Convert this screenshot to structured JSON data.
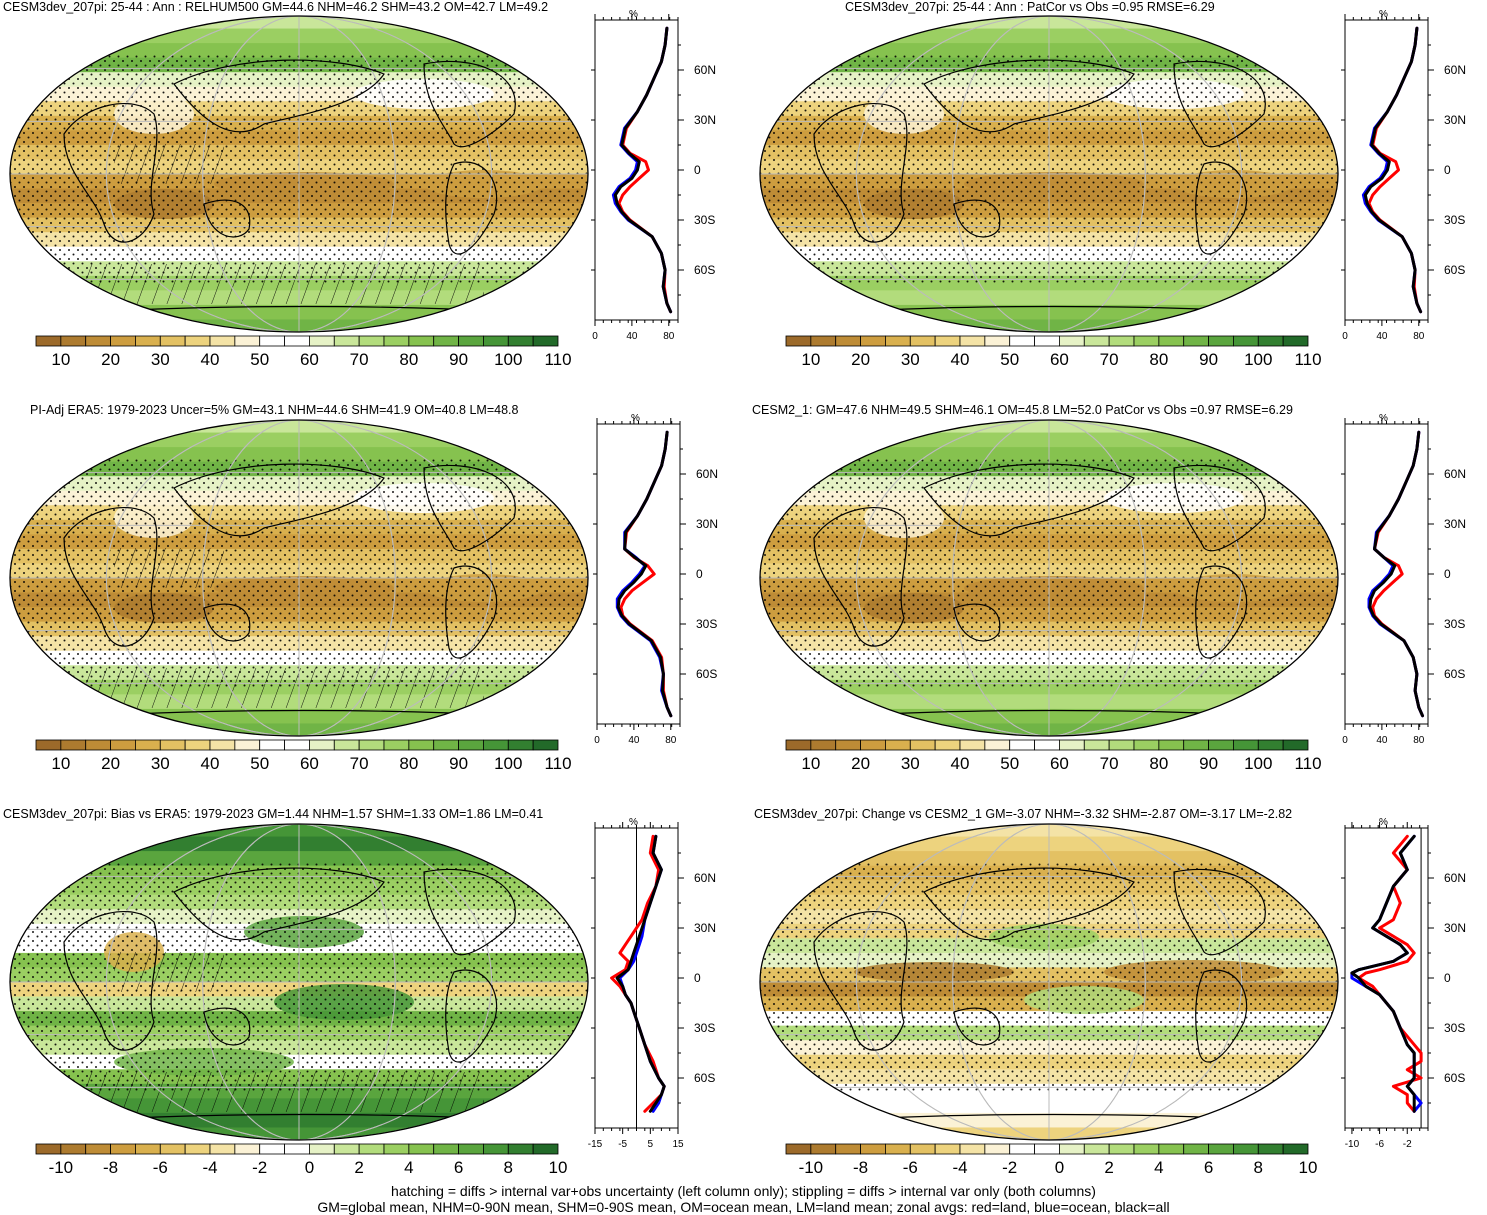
{
  "colors": {
    "absolute_scale": [
      "#9c6a2a",
      "#ad7b2f",
      "#be8c36",
      "#cd9d3f",
      "#d9b04e",
      "#e3c163",
      "#edd37e",
      "#f4e3a6",
      "#fbf2d6",
      "#ffffff",
      "#ffffff",
      "#e6f2c6",
      "#c9e69a",
      "#b2dc7c",
      "#9bcf62",
      "#86c24f",
      "#70b446",
      "#5aa53e",
      "#459537",
      "#327f30",
      "#226a29"
    ],
    "diff_scale": [
      "#9c6a2a",
      "#ad7b2f",
      "#be8c36",
      "#cd9d3f",
      "#d9b04e",
      "#e3c163",
      "#edd37e",
      "#f4e3a6",
      "#fbf2d6",
      "#ffffff",
      "#ffffff",
      "#e6f2c6",
      "#c9e69a",
      "#b2dc7c",
      "#9bcf62",
      "#86c24f",
      "#70b446",
      "#5aa53e",
      "#459537",
      "#327f30",
      "#226a29"
    ],
    "land_line": "#ff0000",
    "ocean_line": "#0000ff",
    "all_line": "#000000",
    "missing": "#d3d3d3"
  },
  "chart_data": [
    {
      "type": "heatmap",
      "title": "CESM3dev_207pi: 25-44 : Ann : RELHUM500 GM=44.6 NHM=46.2 SHM=43.2 OM=42.7 LM=49.2",
      "colorbar_labels": [
        "10",
        "20",
        "30",
        "40",
        "50",
        "60",
        "70",
        "80",
        "90",
        "100",
        "110"
      ],
      "zonal": {
        "top_label": "%",
        "x_ticks": [
          "0",
          "40",
          "80"
        ],
        "xlim": [
          0,
          90
        ],
        "y_ticks": [
          "60N",
          "30N",
          "0",
          "30S",
          "60S"
        ],
        "ylim": [
          -90,
          90
        ],
        "lat": [
          85,
          75,
          65,
          55,
          45,
          35,
          25,
          15,
          10,
          5,
          0,
          -5,
          -10,
          -15,
          -20,
          -25,
          -30,
          -40,
          -50,
          -60,
          -70,
          -80,
          -85
        ],
        "land": [
          78,
          76,
          72,
          64,
          56,
          46,
          34,
          30,
          38,
          55,
          58,
          48,
          38,
          30,
          26,
          30,
          38,
          62,
          72,
          76,
          75,
          78,
          82
        ],
        "ocean": [
          78,
          76,
          72,
          64,
          56,
          46,
          32,
          28,
          36,
          46,
          44,
          38,
          26,
          20,
          22,
          28,
          36,
          62,
          72,
          76,
          74,
          78,
          82
        ],
        "all": [
          78,
          76,
          72,
          64,
          56,
          46,
          33,
          29,
          37,
          48,
          46,
          40,
          28,
          22,
          24,
          29,
          37,
          62,
          72,
          76,
          74,
          78,
          82
        ]
      }
    },
    {
      "type": "heatmap",
      "title": "CESM3dev_207pi: 25-44 : Ann : PatCor vs Obs =0.95 RMSE=6.29",
      "colorbar_labels": [
        "10",
        "20",
        "30",
        "40",
        "50",
        "60",
        "70",
        "80",
        "90",
        "100",
        "110"
      ],
      "zonal": {
        "top_label": "%",
        "x_ticks": [
          "0",
          "40",
          "80"
        ],
        "xlim": [
          0,
          90
        ],
        "y_ticks": [
          "60N",
          "30N",
          "0",
          "30S",
          "60S"
        ],
        "ylim": [
          -90,
          90
        ],
        "lat": [
          85,
          75,
          65,
          55,
          45,
          35,
          25,
          15,
          10,
          5,
          0,
          -5,
          -10,
          -15,
          -20,
          -25,
          -30,
          -40,
          -50,
          -60,
          -70,
          -80,
          -85
        ],
        "land": [
          78,
          76,
          72,
          64,
          56,
          46,
          34,
          30,
          38,
          55,
          58,
          48,
          38,
          30,
          26,
          30,
          38,
          62,
          72,
          76,
          75,
          78,
          82
        ],
        "ocean": [
          78,
          76,
          72,
          64,
          56,
          46,
          32,
          28,
          36,
          46,
          44,
          38,
          26,
          20,
          22,
          28,
          36,
          62,
          72,
          76,
          74,
          78,
          82
        ],
        "all": [
          78,
          76,
          72,
          64,
          56,
          46,
          33,
          29,
          37,
          48,
          46,
          40,
          28,
          22,
          24,
          29,
          37,
          62,
          72,
          76,
          74,
          78,
          82
        ]
      }
    },
    {
      "type": "heatmap",
      "title": "PI-Adj ERA5: 1979-2023 Uncer=5% GM=43.1 NHM=44.6 SHM=41.9 OM=40.8 LM=48.8",
      "colorbar_labels": [
        "10",
        "20",
        "30",
        "40",
        "50",
        "60",
        "70",
        "80",
        "90",
        "100",
        "110"
      ],
      "zonal": {
        "top_label": "%",
        "x_ticks": [
          "0",
          "40",
          "80"
        ],
        "xlim": [
          0,
          90
        ],
        "y_ticks": [
          "60N",
          "30N",
          "0",
          "30S",
          "60S"
        ],
        "ylim": [
          -90,
          90
        ],
        "lat": [
          85,
          75,
          65,
          55,
          45,
          35,
          25,
          15,
          10,
          5,
          0,
          -5,
          -10,
          -15,
          -20,
          -25,
          -30,
          -40,
          -50,
          -60,
          -70,
          -80,
          -85
        ],
        "land": [
          76,
          74,
          70,
          62,
          54,
          44,
          32,
          30,
          40,
          55,
          62,
          50,
          38,
          30,
          26,
          28,
          36,
          60,
          70,
          72,
          72,
          76,
          80
        ],
        "ocean": [
          76,
          74,
          70,
          62,
          54,
          44,
          30,
          30,
          42,
          52,
          46,
          38,
          28,
          22,
          22,
          26,
          34,
          58,
          68,
          72,
          70,
          76,
          80
        ],
        "all": [
          76,
          74,
          70,
          62,
          54,
          44,
          31,
          30,
          41,
          53,
          48,
          40,
          30,
          24,
          23,
          27,
          35,
          59,
          69,
          72,
          71,
          76,
          80
        ]
      }
    },
    {
      "type": "heatmap",
      "title": "CESM2_1: GM=47.6 NHM=49.5 SHM=46.1 OM=45.8 LM=52.0 PatCor vs Obs =0.97 RMSE=6.29",
      "colorbar_labels": [
        "10",
        "20",
        "30",
        "40",
        "50",
        "60",
        "70",
        "80",
        "90",
        "100",
        "110"
      ],
      "zonal": {
        "top_label": "%",
        "x_ticks": [
          "0",
          "40",
          "80"
        ],
        "xlim": [
          0,
          90
        ],
        "y_ticks": [
          "60N",
          "30N",
          "0",
          "30S",
          "60S"
        ],
        "ylim": [
          -90,
          90
        ],
        "lat": [
          85,
          75,
          65,
          55,
          45,
          35,
          25,
          15,
          10,
          5,
          0,
          -5,
          -10,
          -15,
          -20,
          -25,
          -30,
          -40,
          -50,
          -60,
          -70,
          -80,
          -85
        ],
        "land": [
          80,
          78,
          74,
          66,
          58,
          48,
          36,
          32,
          42,
          58,
          62,
          52,
          42,
          34,
          30,
          32,
          40,
          64,
          74,
          78,
          76,
          80,
          84
        ],
        "ocean": [
          80,
          78,
          74,
          66,
          58,
          48,
          34,
          32,
          42,
          52,
          48,
          40,
          30,
          26,
          26,
          30,
          38,
          64,
          74,
          78,
          76,
          80,
          84
        ],
        "all": [
          80,
          78,
          74,
          66,
          58,
          48,
          35,
          32,
          42,
          54,
          50,
          42,
          32,
          28,
          27,
          31,
          39,
          64,
          74,
          78,
          76,
          80,
          84
        ]
      }
    },
    {
      "type": "heatmap",
      "title": "CESM3dev_207pi: Bias vs ERA5: 1979-2023 GM=1.44 NHM=1.57 SHM=1.33 OM=1.86 LM=0.41",
      "colorbar_labels": [
        "-10",
        "-8",
        "-6",
        "-4",
        "-2",
        "0",
        "2",
        "4",
        "6",
        "8",
        "10"
      ],
      "zonal": {
        "top_label": "%",
        "x_ticks": [
          "-15",
          "-5",
          "5",
          "15"
        ],
        "xlim": [
          -15,
          15
        ],
        "y_ticks": [
          "60N",
          "30N",
          "0",
          "30S",
          "60S"
        ],
        "ylim": [
          -90,
          90
        ],
        "lat": [
          85,
          75,
          65,
          55,
          45,
          35,
          25,
          20,
          15,
          10,
          5,
          0,
          -5,
          -10,
          -15,
          -20,
          -30,
          -40,
          -50,
          -60,
          -65,
          -70,
          -75,
          -80
        ],
        "land": [
          6,
          5,
          8,
          7,
          4,
          2,
          -2,
          -4,
          -6,
          -3,
          -4,
          -9,
          -6,
          -4,
          -2,
          -1,
          1,
          3,
          6,
          8,
          10,
          9,
          6,
          3
        ],
        "ocean": [
          7,
          6,
          9,
          7,
          5,
          3,
          2,
          1,
          0,
          -1,
          -3,
          -6,
          -5,
          -4,
          -2,
          -1,
          1,
          3,
          5,
          8,
          10,
          9,
          8,
          6
        ],
        "all": [
          7,
          6,
          9,
          7,
          5,
          3,
          1,
          0,
          -1,
          -2,
          -3,
          -7,
          -5,
          -4,
          -2,
          -1,
          1,
          3,
          5,
          8,
          10,
          9,
          7,
          5
        ]
      }
    },
    {
      "type": "heatmap",
      "title": "CESM3dev_207pi: Change vs CESM2_1 GM=-3.07 NHM=-3.32 SHM=-2.87 OM=-3.17 LM=-2.82",
      "colorbar_labels": [
        "-10",
        "-8",
        "-6",
        "-4",
        "-2",
        "0",
        "2",
        "4",
        "6",
        "8",
        "10"
      ],
      "zonal": {
        "top_label": "%",
        "x_ticks": [
          "-10",
          "-6",
          "-2"
        ],
        "xlim": [
          -11,
          1
        ],
        "y_ticks": [
          "60N",
          "30N",
          "0",
          "30S",
          "60S"
        ],
        "ylim": [
          -90,
          90
        ],
        "lat": [
          85,
          75,
          65,
          55,
          45,
          35,
          30,
          25,
          20,
          15,
          10,
          5,
          3,
          0,
          -5,
          -10,
          -20,
          -30,
          -40,
          -45,
          -50,
          -55,
          -60,
          -65,
          -70,
          -75,
          -80
        ],
        "land": [
          -2,
          -4,
          -2,
          -4,
          -3,
          -4,
          -6,
          -4,
          -2,
          -1,
          -2,
          -6,
          -8,
          -9,
          -7,
          -6,
          -4,
          -3,
          -1,
          0,
          0,
          -2,
          0,
          -4,
          -2,
          -2,
          -1
        ],
        "ocean": [
          -1,
          -3,
          -2,
          -4,
          -5,
          -6,
          -7,
          -5,
          -3,
          -2,
          -4,
          -9,
          -10,
          -10,
          -8,
          -6,
          -4,
          -3,
          -2,
          -1,
          -1,
          -1,
          -1,
          -2,
          -1,
          0,
          -1
        ],
        "all": [
          -1,
          -3,
          -2,
          -4,
          -5,
          -6,
          -7,
          -5,
          -3,
          -2,
          -4,
          -9,
          -10,
          -9,
          -8,
          -6,
          -4,
          -3,
          -2,
          -1,
          -1,
          -1,
          -1,
          -2,
          -1,
          -1,
          -1
        ]
      }
    }
  ],
  "footer": {
    "line1": "hatching = diffs > internal var+obs uncertainty (left column only); stippling = diffs > internal var only (both columns)",
    "line2": "GM=global mean, NHM=0-90N mean, SHM=0-90S mean, OM=ocean mean, LM=land mean; zonal avgs: red=land, blue=ocean, black=all"
  }
}
